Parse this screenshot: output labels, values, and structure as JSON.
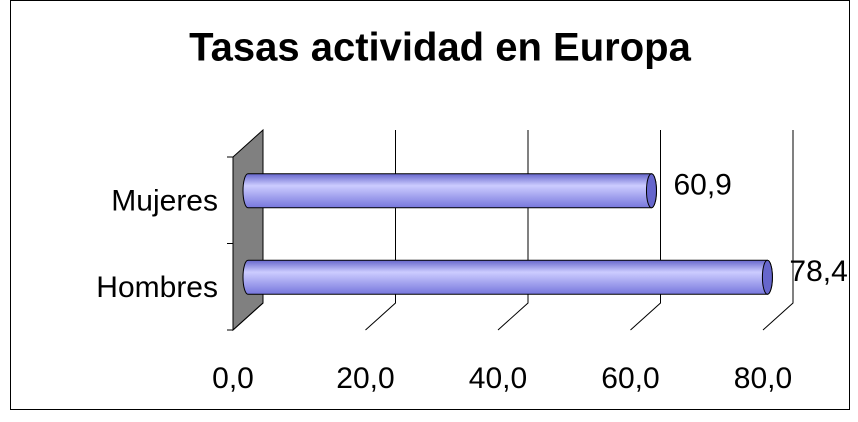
{
  "chart_data": {
    "type": "bar3d",
    "orientation": "horizontal",
    "title": "Tasas actividad en Europa",
    "categories": [
      "Mujeres",
      "Hombres"
    ],
    "values": [
      60.9,
      78.4
    ],
    "value_labels": [
      "60,9",
      "78,4"
    ],
    "color": "#9999ff",
    "wall_color": "#808080",
    "xlim": [
      0,
      80
    ],
    "xticks": [
      {
        "value": 0,
        "label": "0,0"
      },
      {
        "value": 20,
        "label": "20,0"
      },
      {
        "value": 40,
        "label": "40,0"
      },
      {
        "value": 60,
        "label": "60,0"
      },
      {
        "value": 80,
        "label": "80,0"
      }
    ],
    "grid": true
  }
}
